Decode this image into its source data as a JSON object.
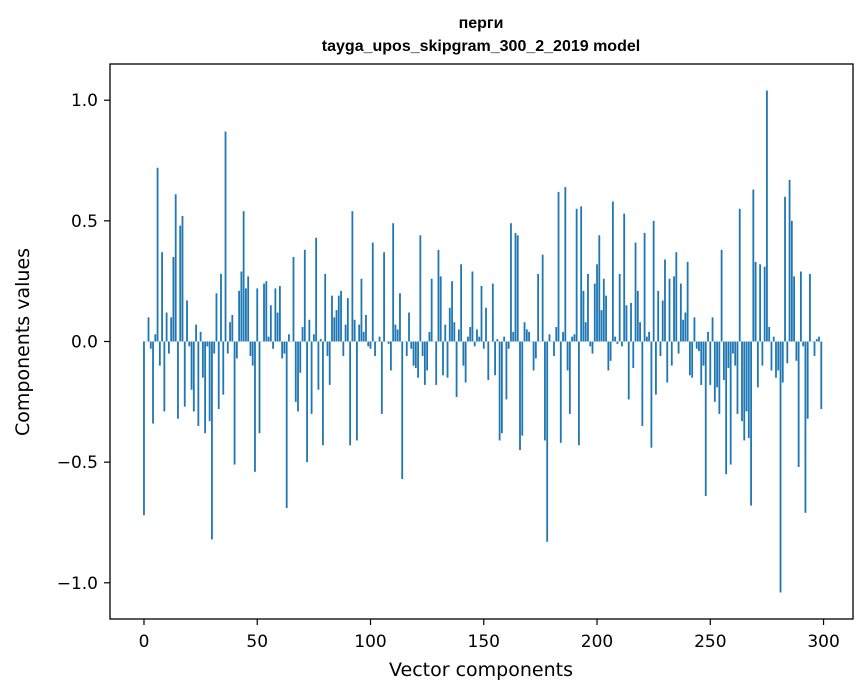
{
  "chart_data": {
    "type": "bar",
    "title": "перги",
    "subtitle": "tayga_upos_skipgram_300_2_2019 model",
    "xlabel": "Vector components",
    "ylabel": "Components values",
    "xlim": [
      -15,
      313
    ],
    "ylim": [
      -1.15,
      1.15
    ],
    "x_ticks": [
      0,
      50,
      100,
      150,
      200,
      250,
      300
    ],
    "x_tick_labels": [
      "0",
      "50",
      "100",
      "150",
      "200",
      "250",
      "300"
    ],
    "y_ticks": [
      -1.0,
      -0.5,
      0.0,
      0.5,
      1.0
    ],
    "y_tick_labels": [
      "−1.0",
      "−0.5",
      "0.0",
      "0.5",
      "1.0"
    ],
    "bar_color": "#1f77b4",
    "series": [
      {
        "name": "перги",
        "values": [
          -0.72,
          0.0,
          0.1,
          -0.03,
          -0.34,
          0.03,
          0.72,
          -0.1,
          0.37,
          -0.29,
          0.12,
          -0.05,
          0.1,
          0.35,
          0.61,
          -0.32,
          0.48,
          0.52,
          -0.27,
          0.17,
          -0.02,
          -0.2,
          -0.29,
          0.07,
          -0.35,
          0.04,
          -0.15,
          -0.38,
          -0.02,
          -0.33,
          -0.82,
          -0.05,
          0.2,
          -0.28,
          0.28,
          -0.22,
          0.87,
          -0.05,
          0.08,
          0.11,
          -0.51,
          -0.07,
          0.21,
          0.29,
          0.54,
          0.22,
          0.27,
          -0.06,
          -0.1,
          -0.54,
          0.22,
          -0.38,
          0.0,
          0.24,
          0.25,
          0.02,
          0.15,
          -0.03,
          0.22,
          0.12,
          0.23,
          -0.07,
          -0.05,
          -0.69,
          0.03,
          0.0,
          0.35,
          -0.25,
          -0.29,
          -0.13,
          0.06,
          0.38,
          -0.5,
          0.09,
          -0.3,
          0.03,
          0.43,
          -0.2,
          0.01,
          -0.43,
          0.28,
          -0.06,
          -0.18,
          0.19,
          0.1,
          0.13,
          0.19,
          0.21,
          -0.06,
          0.07,
          0.18,
          -0.43,
          0.54,
          0.09,
          -0.41,
          0.07,
          0.26,
          0.04,
          0.11,
          -0.02,
          -0.03,
          0.41,
          -0.06,
          0.0,
          0.02,
          -0.3,
          0.37,
          0.0,
          -0.01,
          -0.12,
          0.49,
          0.07,
          0.05,
          0.2,
          -0.57,
          0.0,
          -0.06,
          0.12,
          -0.03,
          -0.1,
          -0.11,
          -0.15,
          0.44,
          -0.06,
          -0.18,
          -0.12,
          0.04,
          0.26,
          0.0,
          -0.18,
          0.38,
          0.27,
          -0.14,
          0.07,
          -0.15,
          0.14,
          0.25,
          0.08,
          -0.23,
          0.05,
          0.32,
          -0.1,
          -0.17,
          0.02,
          0.06,
          0.29,
          -0.02,
          0.05,
          0.02,
          0.23,
          -0.03,
          0.14,
          -0.16,
          0.0,
          0.24,
          -0.14,
          0.01,
          -0.41,
          -0.38,
          0.02,
          -0.24,
          -0.03,
          0.49,
          0.04,
          0.45,
          0.44,
          -0.45,
          -0.39,
          0.08,
          0.05,
          0.04,
          0.0,
          -0.12,
          -0.07,
          0.28,
          0.0,
          0.36,
          -0.41,
          -0.83,
          0.03,
          0.0,
          -0.06,
          0.06,
          0.62,
          -0.42,
          0.04,
          0.64,
          -0.12,
          -0.3,
          0.02,
          0.03,
          0.55,
          -0.43,
          0.56,
          0.21,
          0.08,
          0.28,
          -0.02,
          -0.05,
          0.24,
          0.32,
          0.44,
          0.13,
          0.26,
          0.19,
          -0.12,
          -0.08,
          0.58,
          0.02,
          -0.01,
          0.28,
          -0.02,
          0.53,
          0.15,
          -0.24,
          0.16,
          -0.11,
          0.41,
          0.21,
          0.08,
          -0.35,
          0.45,
          0.02,
          0.04,
          -0.44,
          0.5,
          -0.22,
          0.21,
          -0.06,
          0.17,
          0.34,
          -0.17,
          0.26,
          -0.1,
          0.27,
          0.37,
          -0.05,
          0.24,
          0.09,
          0.12,
          0.33,
          -0.14,
          -0.15,
          0.1,
          -0.03,
          -0.04,
          -0.18,
          -0.1,
          -0.64,
          0.04,
          -0.18,
          0.1,
          -0.25,
          -0.19,
          -0.3,
          0.38,
          -0.16,
          -0.55,
          -0.11,
          -0.51,
          -0.05,
          -0.1,
          -0.3,
          0.55,
          -0.33,
          -0.41,
          -0.29,
          -0.4,
          -0.68,
          0.63,
          0.33,
          -0.19,
          0.32,
          -0.1,
          0.31,
          1.04,
          0.06,
          -0.12,
          0.02,
          -0.15,
          -0.12,
          -1.04,
          -0.17,
          0.6,
          -0.09,
          0.67,
          0.5,
          0.27,
          -0.08,
          -0.52,
          0.29,
          -0.02,
          -0.71,
          -0.32,
          0.28,
          0.0,
          -0.06,
          0.01,
          0.02,
          -0.28
        ]
      }
    ]
  }
}
